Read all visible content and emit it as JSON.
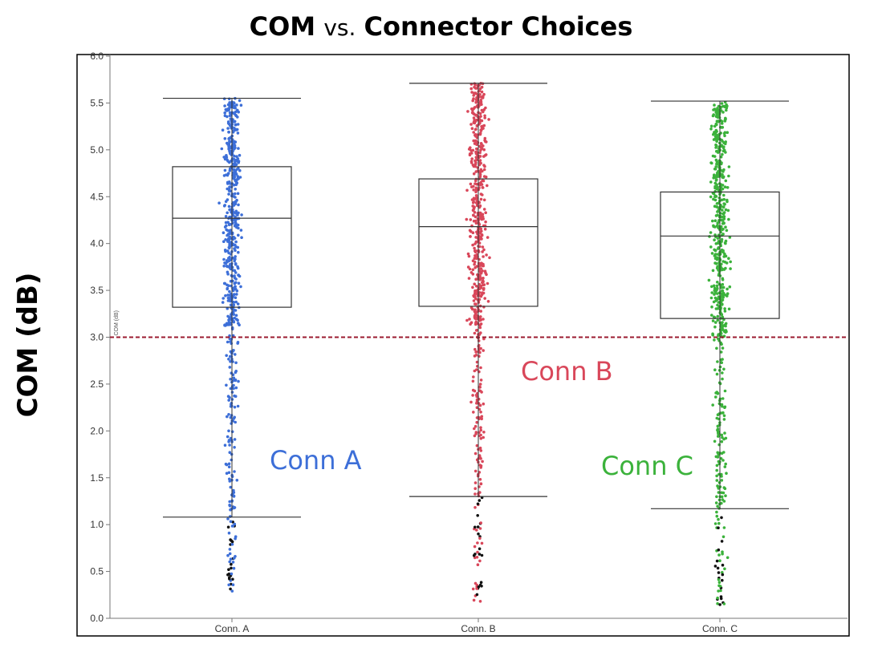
{
  "title": {
    "bold_left": "COM",
    "connector": "vs.",
    "bold_right": "Connector Choices"
  },
  "y_axis_label": "COM (dB)",
  "annotations": [
    {
      "text": "Conn A",
      "color": "#3d6fd8"
    },
    {
      "text": "Conn B",
      "color": "#d9475a"
    },
    {
      "text": "Conn C",
      "color": "#3bb23b"
    }
  ],
  "chart_data": {
    "type": "scatter",
    "subtype": "box-plot with jittered points",
    "title": "COM vs. Connector Choices",
    "xlabel": "",
    "ylabel": "COM (dB)",
    "small_ylabel": "COM (dB)",
    "ylim": [
      0.0,
      6.0
    ],
    "yticks": [
      "0.0",
      "0.5",
      "1.0",
      "1.5",
      "2.0",
      "2.5",
      "3.0",
      "3.5",
      "4.0",
      "4.5",
      "5.0",
      "5.5",
      "6.0"
    ],
    "categories": [
      "Conn. A",
      "Conn. B",
      "Conn. C"
    ],
    "reference_line": {
      "y": 3.0,
      "color": "#9b1b30",
      "style": "dashed"
    },
    "outlier_color": "#111111",
    "series": [
      {
        "name": "Conn A",
        "category": "Conn. A",
        "color": "#3d6fd8",
        "box": {
          "whisker_low": 1.08,
          "q1": 3.32,
          "median": 4.27,
          "q3": 4.82,
          "whisker_high": 5.55
        },
        "data_min": 0.26,
        "data_max": 5.55,
        "points": 620
      },
      {
        "name": "Conn B",
        "category": "Conn. B",
        "color": "#d9475a",
        "box": {
          "whisker_low": 1.3,
          "q1": 3.33,
          "median": 4.18,
          "q3": 4.69,
          "whisker_high": 5.71
        },
        "data_min": 0.18,
        "data_max": 5.71,
        "points": 620
      },
      {
        "name": "Conn C",
        "category": "Conn. C",
        "color": "#3bb23b",
        "box": {
          "whisker_low": 1.17,
          "q1": 3.2,
          "median": 4.08,
          "q3": 4.55,
          "whisker_high": 5.52
        },
        "data_min": 0.12,
        "data_max": 5.52,
        "points": 620
      }
    ]
  }
}
